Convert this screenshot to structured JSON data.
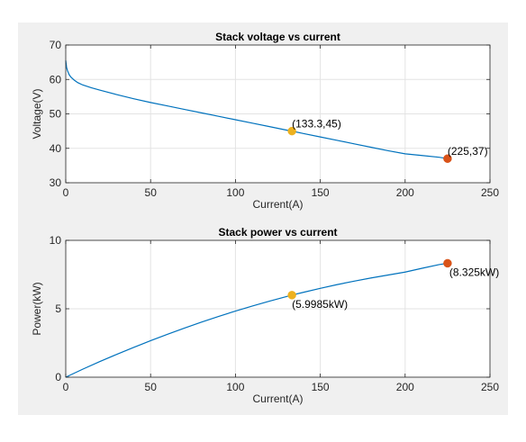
{
  "chart_data": [
    {
      "type": "line",
      "title": "Stack voltage vs current",
      "xlabel": "Current(A)",
      "ylabel": "Voltage(V)",
      "xlim": [
        0,
        250
      ],
      "ylim": [
        30,
        70
      ],
      "xticks": [
        0,
        50,
        100,
        150,
        200,
        250
      ],
      "yticks": [
        30,
        40,
        50,
        60,
        70
      ],
      "grid": true,
      "series": [
        {
          "color": "#0072bd",
          "x": [
            0,
            0.5,
            1,
            2,
            3,
            5,
            7,
            10,
            15,
            20,
            30,
            40,
            50,
            60,
            70,
            80,
            90,
            100,
            110,
            120,
            130,
            133.3,
            140,
            150,
            160,
            170,
            180,
            190,
            200,
            210,
            220,
            225
          ],
          "y": [
            65.5,
            63.5,
            62.6,
            61.4,
            60.7,
            59.8,
            59.1,
            58.4,
            57.6,
            56.9,
            55.6,
            54.4,
            53.3,
            52.3,
            51.3,
            50.3,
            49.3,
            48.3,
            47.3,
            46.3,
            45.3,
            45.0,
            44.3,
            43.3,
            42.3,
            41.3,
            40.3,
            39.3,
            38.4,
            37.9,
            37.4,
            37.0
          ]
        }
      ],
      "markers": [
        {
          "x": 133.3,
          "y": 45,
          "label": "(133.3,45)",
          "color": "#edb120"
        },
        {
          "x": 225,
          "y": 37,
          "label": "(225,37)",
          "color": "#d95319"
        }
      ]
    },
    {
      "type": "line",
      "title": "Stack power vs current",
      "xlabel": "Current(A)",
      "ylabel": "Power(kW)",
      "xlim": [
        0,
        250
      ],
      "ylim": [
        0,
        10
      ],
      "xticks": [
        0,
        50,
        100,
        150,
        200,
        250
      ],
      "yticks": [
        0,
        5,
        10
      ],
      "grid": true,
      "series": [
        {
          "color": "#0072bd",
          "x": [
            0,
            10,
            20,
            30,
            40,
            50,
            60,
            70,
            80,
            90,
            100,
            110,
            120,
            133.3,
            140,
            150,
            160,
            170,
            180,
            190,
            200,
            210,
            220,
            225
          ],
          "y": [
            0,
            0.584,
            1.138,
            1.668,
            2.176,
            2.665,
            3.138,
            3.591,
            4.024,
            4.437,
            4.83,
            5.203,
            5.556,
            5.9985,
            6.202,
            6.495,
            6.768,
            7.021,
            7.254,
            7.467,
            7.68,
            7.959,
            8.228,
            8.325
          ]
        }
      ],
      "markers": [
        {
          "x": 133.3,
          "y": 5.9985,
          "label": "(5.9985kW)",
          "color": "#edb120"
        },
        {
          "x": 225,
          "y": 8.325,
          "label": "(8.325kW)",
          "color": "#d95319"
        }
      ]
    }
  ]
}
